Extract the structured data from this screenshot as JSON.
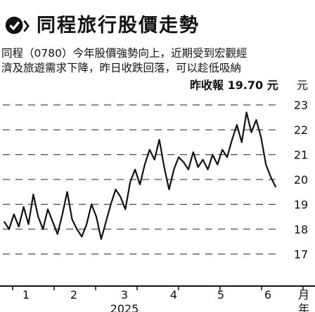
{
  "header": {
    "title": "同程旅行股價走勢",
    "logo_icon": "magnifier-check-icon",
    "accent_color": "#111111"
  },
  "description": {
    "line1": "同程（0780）今年股價強勢向上，近期受到宏觀經",
    "line2": "濟及旅遊需求下降，昨日收跌回落，可以趁低吸納"
  },
  "price_label": {
    "text": "昨收報 19.70 元",
    "unit": "元"
  },
  "chart_data": {
    "type": "line",
    "title": "",
    "xlabel": "2025",
    "ylabel": "元",
    "x_ticks": [
      "1",
      "2",
      "3",
      "4",
      "5",
      "6"
    ],
    "x_unit_label": "月",
    "x_unit_label2": "年",
    "yticks": [
      17,
      18,
      19,
      20,
      21,
      22,
      23
    ],
    "ylim": [
      16.5,
      23.5
    ],
    "grid": true,
    "series": [
      {
        "values": [
          18.3,
          18.0,
          18.6,
          18.1,
          18.9,
          18.2,
          19.4,
          18.5,
          18.0,
          18.8,
          18.3,
          17.8,
          18.6,
          19.5,
          18.4,
          18.0,
          17.7,
          18.2,
          19.0,
          18.5,
          17.6,
          18.3,
          19.0,
          19.6,
          19.3,
          18.8,
          19.9,
          20.4,
          19.8,
          20.6,
          21.2,
          20.8,
          21.6,
          20.5,
          19.6,
          20.4,
          20.9,
          20.7,
          20.4,
          21.1,
          20.5,
          20.8,
          20.4,
          21.0,
          20.6,
          21.2,
          20.9,
          21.6,
          22.2,
          21.5,
          22.7,
          21.9,
          22.4,
          21.7,
          20.6,
          20.1,
          19.7
        ]
      }
    ]
  }
}
